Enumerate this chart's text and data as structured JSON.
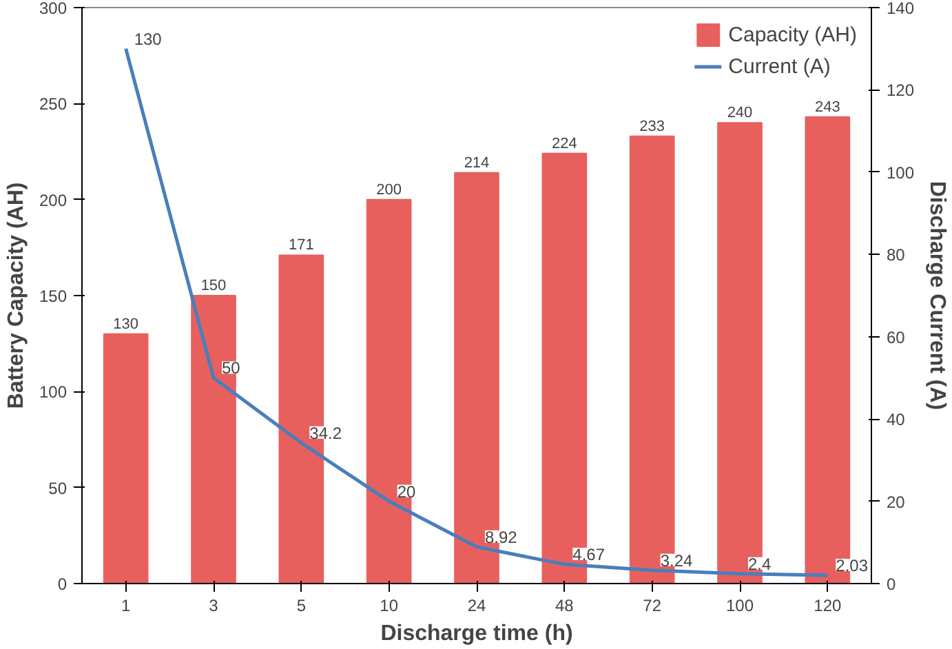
{
  "chart_data": {
    "type": "bar",
    "xlabel": "Discharge time (h)",
    "ylabel": "Battery Capacity (AH)",
    "y2label": "Discharge Current (A)",
    "categories": [
      "1",
      "3",
      "5",
      "10",
      "24",
      "48",
      "72",
      "100",
      "120"
    ],
    "series": [
      {
        "name": "Capacity (AH)",
        "color": "#e8605e",
        "values": [
          130,
          150,
          171,
          200,
          214,
          224,
          233,
          240,
          243
        ]
      },
      {
        "name": "Current (A)",
        "type": "line",
        "axis": "y2",
        "color": "#4a7ebb",
        "values": [
          130,
          50,
          34.2,
          20,
          8.92,
          4.67,
          3.24,
          2.4,
          2.03
        ]
      }
    ],
    "ylim": [
      0,
      300
    ],
    "yticks": [
      0,
      50,
      100,
      150,
      200,
      250,
      300
    ],
    "y2lim": [
      0,
      140
    ],
    "y2ticks": [
      0,
      20,
      40,
      60,
      80,
      100,
      120,
      140
    ],
    "data_labels": true,
    "grid": false,
    "legend": "top right",
    "marker": "none",
    "line_style": "solid"
  }
}
